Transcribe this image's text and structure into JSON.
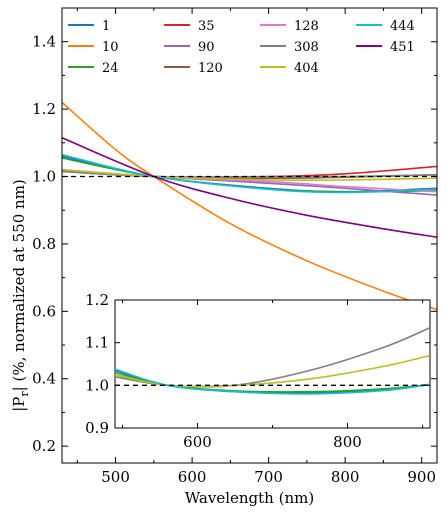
{
  "chart_data": [
    {
      "type": "line",
      "title": "",
      "xlabel": "Wavelength (nm)",
      "ylabel_prefix": "|P",
      "ylabel_sub": "r",
      "ylabel_suffix": "| (%, normalized at 550 nm)",
      "xlim": [
        430,
        920
      ],
      "ylim": [
        0.15,
        1.5
      ],
      "xticks": [
        500,
        600,
        700,
        800,
        900
      ],
      "yticks": [
        0.2,
        0.4,
        0.6,
        0.8,
        1.0,
        1.2,
        1.4
      ],
      "ytick_labels": [
        "0.2",
        "0.4",
        "0.6",
        "0.8",
        "1.0",
        "1.2",
        "1.4"
      ],
      "reference_line": {
        "y": 1.0,
        "style": "dashed",
        "color": "#000000"
      },
      "legend": {
        "position": "top",
        "columns": 4
      },
      "series": [
        {
          "name": "1",
          "color": "#1f77b4",
          "x": [
            430,
            550,
            700,
            800,
            920
          ],
          "y": [
            1.06,
            1.0,
            0.965,
            0.955,
            0.965
          ]
        },
        {
          "name": "10",
          "color": "#ff7f0e",
          "x": [
            430,
            500,
            550,
            650,
            750,
            850,
            920
          ],
          "y": [
            1.22,
            1.08,
            1.0,
            0.86,
            0.75,
            0.66,
            0.605
          ]
        },
        {
          "name": "24",
          "color": "#2ca02c",
          "x": [
            430,
            550,
            700,
            800,
            920
          ],
          "y": [
            1.055,
            1.0,
            0.963,
            0.955,
            0.958
          ]
        },
        {
          "name": "35",
          "color": "#d62728",
          "x": [
            430,
            550,
            700,
            800,
            920
          ],
          "y": [
            1.02,
            1.0,
            1.0,
            1.008,
            1.03
          ]
        },
        {
          "name": "90",
          "color": "#9467bd",
          "x": [
            430,
            550,
            700,
            800,
            920
          ],
          "y": [
            1.02,
            1.0,
            0.98,
            0.965,
            0.945
          ]
        },
        {
          "name": "120",
          "color": "#8c564b",
          "x": [
            430,
            550,
            700,
            800,
            920
          ],
          "y": [
            1.015,
            1.0,
            0.995,
            0.998,
            1.005
          ]
        },
        {
          "name": "128",
          "color": "#e377c2",
          "x": [
            430,
            550,
            700,
            800,
            920
          ],
          "y": [
            1.02,
            1.0,
            0.985,
            0.97,
            0.955
          ]
        },
        {
          "name": "308",
          "color": "#7f7f7f",
          "x": [
            430,
            550,
            700,
            800,
            920
          ],
          "y": [
            1.015,
            1.0,
            0.998,
            1.0,
            1.005
          ]
        },
        {
          "name": "404",
          "color": "#bcbd22",
          "x": [
            430,
            550,
            700,
            800,
            920
          ],
          "y": [
            1.02,
            1.0,
            0.99,
            0.99,
            0.995
          ]
        },
        {
          "name": "444",
          "color": "#17becf",
          "x": [
            430,
            550,
            700,
            800,
            920
          ],
          "y": [
            1.065,
            1.0,
            0.962,
            0.953,
            0.962
          ]
        },
        {
          "name": "451",
          "color": "#800080",
          "x": [
            430,
            550,
            650,
            750,
            850,
            920
          ],
          "y": [
            1.115,
            1.0,
            0.935,
            0.885,
            0.845,
            0.82
          ]
        }
      ]
    },
    {
      "type": "line",
      "title": "inset",
      "xlim": [
        490,
        910
      ],
      "ylim": [
        0.9,
        1.2
      ],
      "xticks": [
        600,
        800
      ],
      "yticks": [
        0.9,
        1.0,
        1.1,
        1.2
      ],
      "ytick_labels": [
        "0.9",
        "1.0",
        "1.1",
        "1.2"
      ],
      "reference_line": {
        "y": 1.0,
        "style": "dashed",
        "color": "#000000"
      },
      "series": [
        {
          "name": "1",
          "color": "#1f77b4",
          "x": [
            490,
            560,
            650,
            750,
            850,
            910
          ],
          "y": [
            1.035,
            1.0,
            0.985,
            0.982,
            0.99,
            1.002
          ]
        },
        {
          "name": "24",
          "color": "#2ca02c",
          "x": [
            490,
            560,
            650,
            750,
            850,
            910
          ],
          "y": [
            1.03,
            1.0,
            0.987,
            0.985,
            0.992,
            1.002
          ]
        },
        {
          "name": "308",
          "color": "#7f7f7f",
          "x": [
            490,
            560,
            650,
            750,
            850,
            910
          ],
          "y": [
            1.02,
            1.0,
            1.0,
            1.035,
            1.09,
            1.135
          ]
        },
        {
          "name": "404",
          "color": "#bcbd22",
          "x": [
            490,
            560,
            650,
            750,
            850,
            910
          ],
          "y": [
            1.025,
            1.0,
            1.0,
            1.015,
            1.045,
            1.07
          ]
        },
        {
          "name": "444",
          "color": "#17becf",
          "x": [
            490,
            560,
            650,
            750,
            850,
            910
          ],
          "y": [
            1.038,
            1.0,
            0.985,
            0.98,
            0.988,
            1.002
          ]
        }
      ]
    }
  ]
}
